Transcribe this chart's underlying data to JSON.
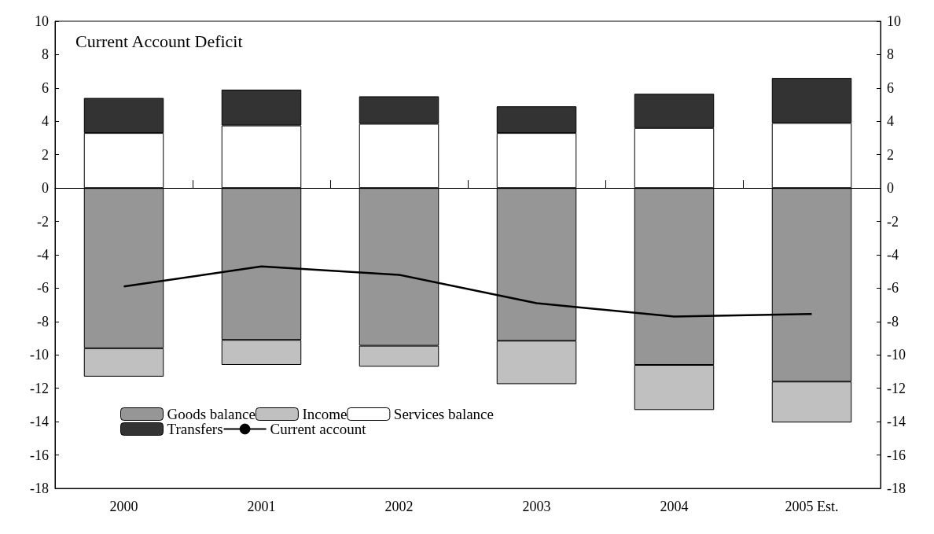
{
  "chart_data": {
    "type": "bar",
    "title": "Current Account Deficit",
    "categories": [
      "2000",
      "2001",
      "2002",
      "2003",
      "2004",
      "2005 Est."
    ],
    "stacked": true,
    "series": [
      {
        "name": "Goods balance",
        "color": "#969696",
        "values": [
          -9.6,
          -9.1,
          -9.45,
          -9.15,
          -10.6,
          -11.6
        ]
      },
      {
        "name": "Income",
        "color": "#c0c0c0",
        "values": [
          -1.7,
          -1.5,
          -1.25,
          -2.6,
          -2.7,
          -2.45
        ]
      },
      {
        "name": "Services balance",
        "color": "#ffffff",
        "values": [
          3.3,
          3.75,
          3.85,
          3.3,
          3.6,
          3.9
        ]
      },
      {
        "name": "Transfers",
        "color": "#333333",
        "values": [
          2.1,
          2.15,
          1.65,
          1.6,
          2.05,
          2.7
        ]
      },
      {
        "name": "Current account",
        "type": "line",
        "color": "#000000",
        "values": [
          -5.9,
          -4.7,
          -5.2,
          -6.9,
          -7.7,
          -7.55
        ]
      }
    ],
    "ylim": [
      -18,
      10
    ],
    "yticks": [
      -18,
      -16,
      -14,
      -12,
      -10,
      -8,
      -6,
      -4,
      -2,
      0,
      2,
      4,
      6,
      8,
      10
    ],
    "y2lim": [
      -18,
      10
    ],
    "y2ticks": [
      -18,
      -16,
      -14,
      -12,
      -10,
      -8,
      -6,
      -4,
      -2,
      0,
      2,
      4,
      6,
      8,
      10
    ],
    "legend": "bottom left",
    "marker": "none"
  }
}
